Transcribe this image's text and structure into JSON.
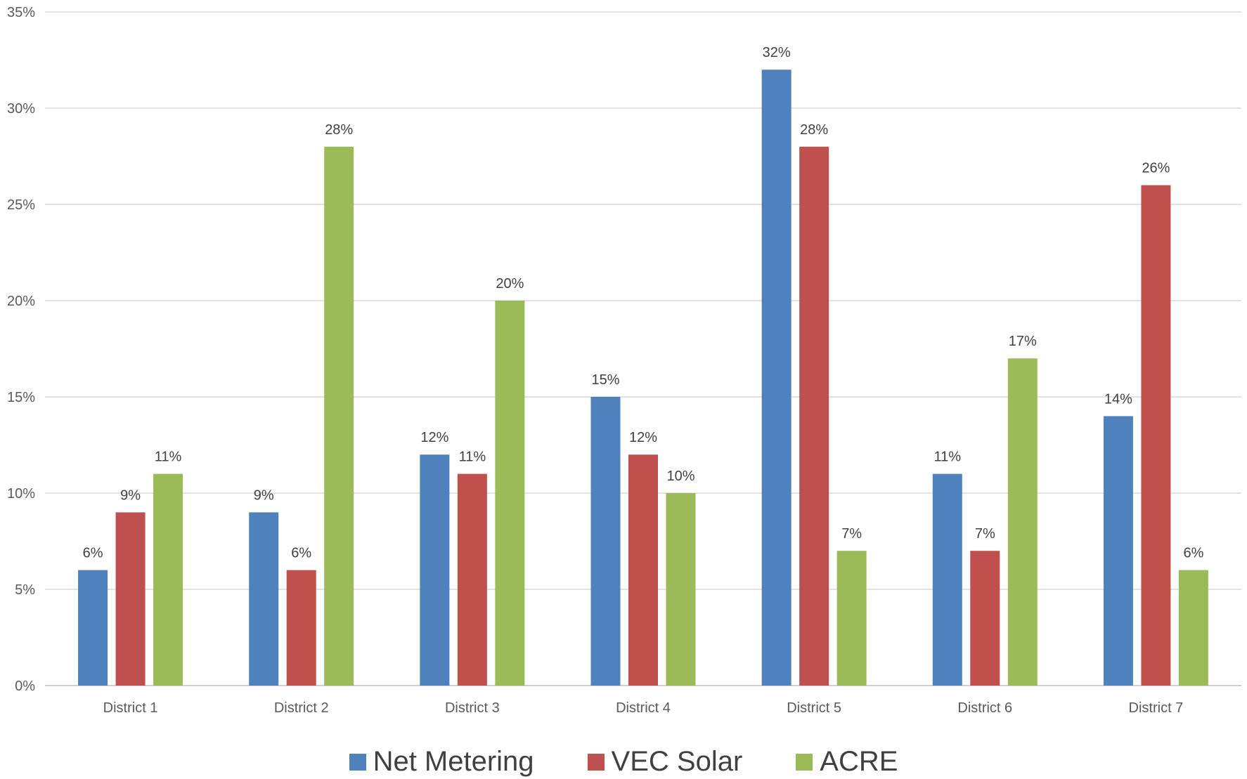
{
  "chart_data": {
    "type": "bar",
    "title": "",
    "xlabel": "",
    "ylabel": "",
    "categories": [
      "District 1",
      "District 2",
      "District 3",
      "District 4",
      "District 5",
      "District 6",
      "District 7"
    ],
    "series": [
      {
        "name": "Net Metering",
        "color": "#4F81BD",
        "values": [
          6,
          9,
          12,
          15,
          32,
          11,
          14
        ]
      },
      {
        "name": "VEC Solar",
        "color": "#C0504D",
        "values": [
          9,
          6,
          11,
          12,
          28,
          7,
          26
        ]
      },
      {
        "name": "ACRE",
        "color": "#9BBB59",
        "values": [
          11,
          28,
          20,
          10,
          7,
          17,
          6
        ]
      }
    ],
    "ylim": [
      0,
      35
    ],
    "yticks": [
      0,
      5,
      10,
      15,
      20,
      25,
      30,
      35
    ],
    "ytick_labels": [
      "0%",
      "5%",
      "10%",
      "15%",
      "20%",
      "25%",
      "30%",
      "35%"
    ],
    "data_label_suffix": "%",
    "grid": true,
    "legend_position": "bottom"
  }
}
